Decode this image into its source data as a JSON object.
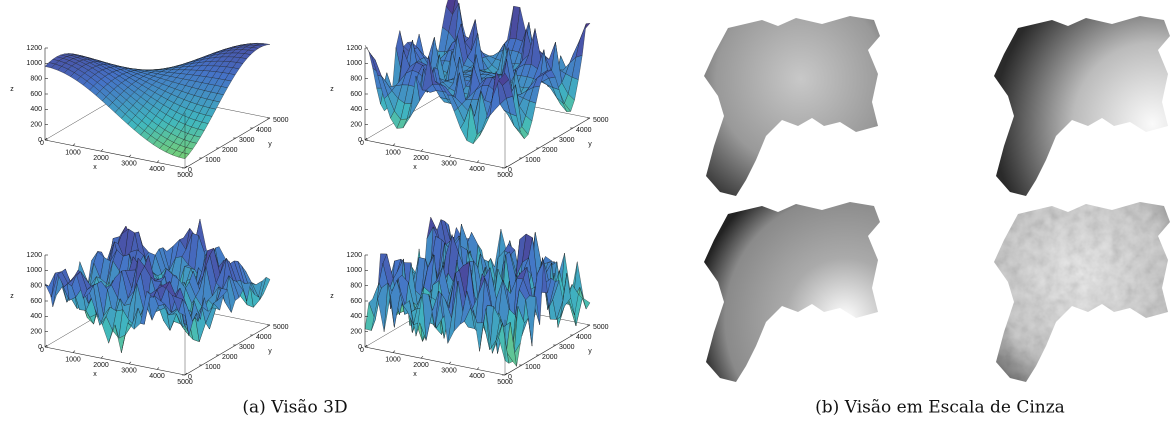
{
  "figure": {
    "panels": [
      {
        "caption": "(a) Visão 3D"
      },
      {
        "caption": "(b) Visão em Escala de Cinza"
      }
    ],
    "axes": {
      "x_label": "x",
      "y_label": "y",
      "z_label": "z",
      "x_ticks": [
        0,
        1000,
        2000,
        3000,
        4000,
        5000
      ],
      "y_ticks": [
        0,
        1000,
        2000,
        3000,
        4000,
        5000
      ],
      "z_ticks": [
        0,
        200,
        400,
        600,
        800,
        1000,
        1200
      ]
    }
  }
}
